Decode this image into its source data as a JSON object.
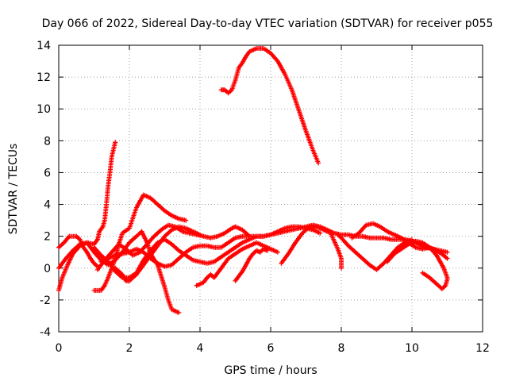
{
  "chart_data": {
    "type": "scatter",
    "title": "Day 066 of 2022, Sidereal Day-to-day VTEC variation (SDTVAR) for receiver p055",
    "xlabel": "GPS time / hours",
    "ylabel": "SDTVAR / TECUs",
    "xlim": [
      0,
      12
    ],
    "ylim": [
      -4,
      14
    ],
    "xticks": [
      0,
      2,
      4,
      6,
      8,
      10,
      12
    ],
    "yticks": [
      -4,
      -2,
      0,
      2,
      4,
      6,
      8,
      10,
      12,
      14
    ],
    "xtick_labels": [
      "0",
      "2",
      "4",
      "6",
      "8",
      "10",
      "12"
    ],
    "ytick_labels": [
      "-4",
      "-2",
      "0",
      "2",
      "4",
      "6",
      "8",
      "10",
      "12",
      "14"
    ],
    "grid": true,
    "marker": "+",
    "color": "#ff0000",
    "series": [
      {
        "name": "trace-1",
        "points": [
          [
            0.0,
            -1.4
          ],
          [
            0.1,
            -0.6
          ],
          [
            0.25,
            0.2
          ],
          [
            0.4,
            0.9
          ],
          [
            0.6,
            1.4
          ],
          [
            0.8,
            1.6
          ],
          [
            1.0,
            1.5
          ],
          [
            1.1,
            1.8
          ],
          [
            1.15,
            2.3
          ],
          [
            1.25,
            2.6
          ],
          [
            1.3,
            3.0
          ],
          [
            1.35,
            4.0
          ],
          [
            1.4,
            5.2
          ],
          [
            1.45,
            6.0
          ],
          [
            1.5,
            7.0
          ],
          [
            1.6,
            7.9
          ]
        ]
      },
      {
        "name": "trace-2",
        "points": [
          [
            0.0,
            1.3
          ],
          [
            0.15,
            1.6
          ],
          [
            0.3,
            2.0
          ],
          [
            0.5,
            2.0
          ],
          [
            0.6,
            1.8
          ],
          [
            0.7,
            1.3
          ],
          [
            0.8,
            1.0
          ],
          [
            0.9,
            0.6
          ],
          [
            1.0,
            0.3
          ],
          [
            1.1,
            0.1
          ]
        ]
      },
      {
        "name": "trace-3",
        "points": [
          [
            1.0,
            -1.4
          ],
          [
            1.2,
            -1.4
          ],
          [
            1.3,
            -1.1
          ],
          [
            1.4,
            -0.6
          ],
          [
            1.5,
            0.0
          ],
          [
            1.6,
            0.6
          ],
          [
            1.7,
            1.5
          ],
          [
            1.8,
            2.2
          ],
          [
            2.0,
            2.5
          ],
          [
            2.2,
            3.8
          ],
          [
            2.4,
            4.6
          ],
          [
            2.6,
            4.4
          ],
          [
            2.8,
            4.0
          ],
          [
            3.0,
            3.6
          ],
          [
            3.2,
            3.3
          ],
          [
            3.4,
            3.1
          ],
          [
            3.6,
            3.0
          ]
        ]
      },
      {
        "name": "trace-4",
        "points": [
          [
            0.0,
            0.0
          ],
          [
            0.2,
            0.6
          ],
          [
            0.4,
            1.1
          ],
          [
            0.6,
            1.5
          ],
          [
            0.8,
            1.6
          ],
          [
            1.0,
            1.0
          ],
          [
            1.2,
            0.5
          ],
          [
            1.4,
            0.2
          ],
          [
            1.6,
            0.5
          ],
          [
            1.8,
            1.0
          ],
          [
            2.0,
            1.6
          ],
          [
            2.2,
            2.0
          ],
          [
            2.35,
            2.3
          ],
          [
            2.5,
            1.6
          ],
          [
            2.6,
            0.9
          ],
          [
            2.8,
            0.2
          ],
          [
            2.9,
            -0.5
          ],
          [
            3.0,
            -1.2
          ],
          [
            3.1,
            -2.0
          ],
          [
            3.2,
            -2.6
          ],
          [
            3.4,
            -2.8
          ]
        ]
      },
      {
        "name": "trace-5",
        "points": [
          [
            1.1,
            -0.1
          ],
          [
            1.3,
            0.5
          ],
          [
            1.5,
            1.0
          ],
          [
            1.7,
            1.5
          ],
          [
            1.9,
            1.2
          ],
          [
            2.1,
            0.8
          ],
          [
            2.3,
            1.0
          ],
          [
            2.5,
            1.5
          ],
          [
            2.7,
            2.0
          ],
          [
            2.9,
            2.4
          ],
          [
            3.1,
            2.7
          ],
          [
            3.3,
            2.6
          ],
          [
            3.5,
            2.3
          ],
          [
            3.7,
            2.2
          ],
          [
            3.9,
            2.1
          ],
          [
            4.1,
            2.0
          ],
          [
            4.3,
            1.9
          ],
          [
            4.5,
            2.0
          ],
          [
            4.7,
            2.2
          ],
          [
            4.9,
            2.5
          ],
          [
            5.0,
            2.6
          ],
          [
            5.2,
            2.4
          ],
          [
            5.4,
            2.0
          ],
          [
            5.6,
            2.0
          ],
          [
            5.8,
            2.0
          ],
          [
            6.0,
            2.1
          ],
          [
            6.2,
            2.2
          ],
          [
            6.4,
            2.3
          ],
          [
            6.6,
            2.4
          ],
          [
            6.8,
            2.5
          ],
          [
            7.0,
            2.6
          ],
          [
            7.2,
            2.7
          ],
          [
            7.4,
            2.6
          ],
          [
            7.6,
            2.4
          ],
          [
            7.8,
            2.2
          ],
          [
            8.0,
            2.1
          ],
          [
            8.2,
            2.1
          ],
          [
            8.4,
            2.0
          ],
          [
            8.6,
            2.0
          ],
          [
            8.8,
            1.9
          ],
          [
            9.0,
            1.9
          ],
          [
            9.2,
            1.9
          ],
          [
            9.4,
            1.8
          ],
          [
            9.6,
            1.8
          ],
          [
            9.8,
            1.8
          ],
          [
            10.0,
            1.7
          ],
          [
            10.2,
            1.5
          ],
          [
            10.4,
            1.3
          ],
          [
            10.6,
            1.2
          ],
          [
            10.8,
            1.1
          ],
          [
            11.0,
            1.0
          ]
        ]
      },
      {
        "name": "trace-6",
        "points": [
          [
            1.0,
            1.3
          ],
          [
            1.2,
            0.8
          ],
          [
            1.4,
            0.4
          ],
          [
            1.6,
            -0.2
          ],
          [
            1.8,
            -0.6
          ],
          [
            2.0,
            -0.6
          ],
          [
            2.2,
            -0.3
          ],
          [
            2.4,
            0.5
          ],
          [
            2.6,
            1.1
          ],
          [
            2.8,
            1.6
          ],
          [
            3.0,
            1.8
          ],
          [
            3.2,
            1.5
          ],
          [
            3.4,
            1.1
          ],
          [
            3.6,
            0.8
          ],
          [
            3.8,
            0.5
          ],
          [
            4.0,
            0.4
          ],
          [
            4.2,
            0.3
          ],
          [
            4.4,
            0.4
          ],
          [
            4.6,
            0.7
          ],
          [
            4.8,
            1.0
          ],
          [
            5.0,
            1.3
          ],
          [
            5.2,
            1.6
          ],
          [
            5.4,
            1.8
          ],
          [
            5.6,
            2.0
          ],
          [
            5.8,
            2.0
          ],
          [
            6.0,
            2.1
          ],
          [
            6.2,
            2.3
          ],
          [
            6.4,
            2.5
          ],
          [
            6.6,
            2.6
          ],
          [
            6.8,
            2.6
          ],
          [
            7.0,
            2.5
          ],
          [
            7.2,
            2.4
          ],
          [
            7.4,
            2.2
          ]
        ]
      },
      {
        "name": "trace-7",
        "points": [
          [
            1.6,
            0.0
          ],
          [
            1.8,
            -0.4
          ],
          [
            1.9,
            -0.8
          ],
          [
            2.0,
            -0.8
          ],
          [
            2.2,
            -0.4
          ],
          [
            2.4,
            0.2
          ],
          [
            2.6,
            0.8
          ],
          [
            2.8,
            1.4
          ],
          [
            3.0,
            2.0
          ],
          [
            3.2,
            2.4
          ],
          [
            3.4,
            2.6
          ],
          [
            3.6,
            2.5
          ],
          [
            3.8,
            2.3
          ],
          [
            4.0,
            2.1
          ]
        ]
      },
      {
        "name": "trace-8",
        "points": [
          [
            1.2,
            0.4
          ],
          [
            1.4,
            0.6
          ],
          [
            1.6,
            0.8
          ],
          [
            1.8,
            0.9
          ],
          [
            2.0,
            1.0
          ],
          [
            2.2,
            1.2
          ],
          [
            2.4,
            1.0
          ],
          [
            2.6,
            0.6
          ],
          [
            2.8,
            0.3
          ],
          [
            3.0,
            0.1
          ],
          [
            3.2,
            0.2
          ],
          [
            3.4,
            0.6
          ],
          [
            3.6,
            1.0
          ],
          [
            3.8,
            1.3
          ],
          [
            4.0,
            1.4
          ],
          [
            4.2,
            1.4
          ],
          [
            4.4,
            1.3
          ],
          [
            4.6,
            1.3
          ],
          [
            4.8,
            1.6
          ],
          [
            5.0,
            1.9
          ],
          [
            5.2,
            2.0
          ],
          [
            5.4,
            2.0
          ]
        ]
      },
      {
        "name": "trace-9",
        "points": [
          [
            3.9,
            -1.1
          ],
          [
            4.1,
            -0.9
          ],
          [
            4.2,
            -0.6
          ],
          [
            4.3,
            -0.4
          ],
          [
            4.4,
            -0.6
          ],
          [
            4.5,
            -0.3
          ],
          [
            4.6,
            0.0
          ],
          [
            4.7,
            0.3
          ],
          [
            4.8,
            0.6
          ],
          [
            5.0,
            0.9
          ],
          [
            5.2,
            1.2
          ],
          [
            5.4,
            1.4
          ],
          [
            5.6,
            1.6
          ],
          [
            5.8,
            1.4
          ],
          [
            6.0,
            1.2
          ],
          [
            6.2,
            1.0
          ]
        ]
      },
      {
        "name": "trace-10",
        "points": [
          [
            5.0,
            -0.8
          ],
          [
            5.1,
            -0.5
          ],
          [
            5.2,
            -0.2
          ],
          [
            5.3,
            0.2
          ],
          [
            5.4,
            0.6
          ],
          [
            5.5,
            0.9
          ],
          [
            5.6,
            1.1
          ],
          [
            5.7,
            1.0
          ],
          [
            5.8,
            1.2
          ],
          [
            5.9,
            1.1
          ]
        ]
      },
      {
        "name": "trace-11",
        "points": [
          [
            4.6,
            11.2
          ],
          [
            4.7,
            11.2
          ],
          [
            4.8,
            11.0
          ],
          [
            4.9,
            11.2
          ],
          [
            5.0,
            11.8
          ],
          [
            5.1,
            12.6
          ],
          [
            5.2,
            12.9
          ],
          [
            5.3,
            13.3
          ],
          [
            5.4,
            13.6
          ],
          [
            5.6,
            13.8
          ],
          [
            5.8,
            13.8
          ],
          [
            6.0,
            13.5
          ],
          [
            6.2,
            13.0
          ],
          [
            6.4,
            12.2
          ],
          [
            6.6,
            11.2
          ],
          [
            6.8,
            9.9
          ],
          [
            7.0,
            8.6
          ],
          [
            7.2,
            7.4
          ],
          [
            7.35,
            6.6
          ]
        ]
      },
      {
        "name": "trace-12",
        "points": [
          [
            6.3,
            0.3
          ],
          [
            6.5,
            0.9
          ],
          [
            6.7,
            1.6
          ],
          [
            6.9,
            2.2
          ],
          [
            7.1,
            2.6
          ],
          [
            7.3,
            2.6
          ],
          [
            7.5,
            2.4
          ],
          [
            7.7,
            2.2
          ],
          [
            7.9,
            1.2
          ],
          [
            8.0,
            0.6
          ],
          [
            8.0,
            0.0
          ]
        ]
      },
      {
        "name": "trace-13",
        "points": [
          [
            7.9,
            2.1
          ],
          [
            8.0,
            1.9
          ],
          [
            8.2,
            1.4
          ],
          [
            8.4,
            1.0
          ],
          [
            8.6,
            0.6
          ],
          [
            8.8,
            0.2
          ],
          [
            9.0,
            -0.1
          ],
          [
            9.2,
            0.3
          ],
          [
            9.4,
            0.8
          ],
          [
            9.6,
            1.3
          ],
          [
            9.8,
            1.6
          ],
          [
            10.0,
            1.8
          ]
        ]
      },
      {
        "name": "trace-14",
        "points": [
          [
            8.3,
            1.9
          ],
          [
            8.5,
            2.2
          ],
          [
            8.7,
            2.7
          ],
          [
            8.9,
            2.8
          ],
          [
            9.1,
            2.6
          ],
          [
            9.3,
            2.3
          ],
          [
            9.5,
            2.1
          ],
          [
            9.7,
            1.9
          ],
          [
            9.9,
            1.6
          ],
          [
            10.1,
            1.3
          ],
          [
            10.3,
            1.2
          ],
          [
            10.5,
            1.3
          ],
          [
            10.7,
            1.1
          ],
          [
            10.9,
            0.8
          ],
          [
            11.0,
            0.6
          ]
        ]
      },
      {
        "name": "trace-15",
        "points": [
          [
            9.3,
            0.4
          ],
          [
            9.5,
            0.9
          ],
          [
            9.7,
            1.2
          ],
          [
            9.9,
            1.5
          ],
          [
            10.1,
            1.7
          ],
          [
            10.3,
            1.6
          ],
          [
            10.5,
            1.3
          ],
          [
            10.7,
            0.8
          ],
          [
            10.8,
            0.4
          ],
          [
            10.9,
            0.0
          ],
          [
            11.0,
            -0.6
          ]
        ]
      },
      {
        "name": "trace-16",
        "points": [
          [
            10.3,
            -0.3
          ],
          [
            10.5,
            -0.6
          ],
          [
            10.7,
            -1.0
          ],
          [
            10.85,
            -1.3
          ],
          [
            10.95,
            -1.1
          ],
          [
            11.0,
            -0.7
          ]
        ]
      }
    ]
  }
}
